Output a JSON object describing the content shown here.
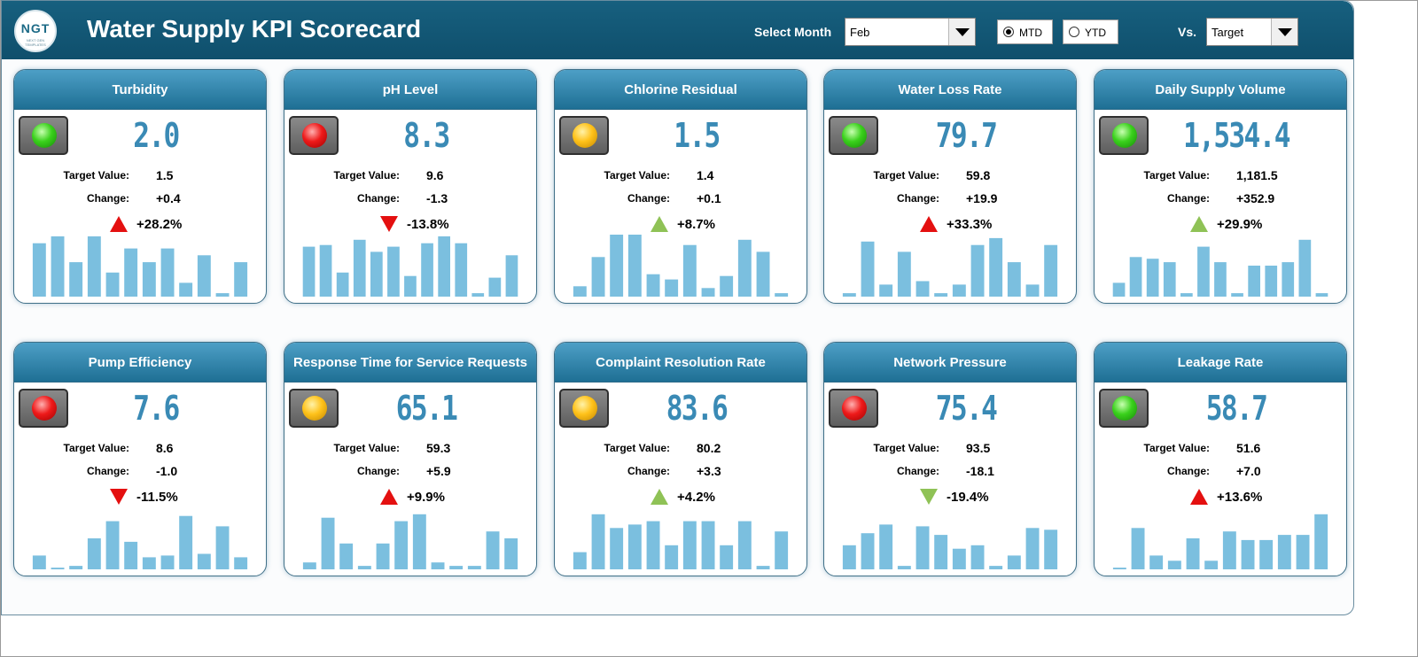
{
  "header": {
    "logo_text": "NGT",
    "logo_subtext": "NEXT GEN TEMPLATES",
    "title": "Water Supply KPI Scorecard",
    "month_label": "Select Month",
    "month_value": "Feb",
    "mtd_label": "MTD",
    "ytd_label": "YTD",
    "selected_period": "MTD",
    "vs_label": "Vs.",
    "vs_value": "Target"
  },
  "labels": {
    "target": "Target Value:",
    "change": "Change:"
  },
  "colors": {
    "header": "#17607f",
    "card_head": "#2a7fa8",
    "value": "#3a8ab5",
    "bars": "#7bbfdf",
    "arrow_bad": "#e41010",
    "arrow_good": "#8fc256"
  },
  "cards": [
    {
      "title": "Turbidity",
      "status": "green",
      "value": "2.0",
      "target": "1.5",
      "change": "+0.4",
      "pct": "+28.2%",
      "direction": "up",
      "arrow_color": "red",
      "bars": [
        62,
        70,
        40,
        70,
        28,
        56,
        40,
        56,
        16,
        48,
        4,
        40
      ]
    },
    {
      "title": "pH Level",
      "status": "red",
      "value": "8.3",
      "target": "9.6",
      "change": "-1.3",
      "pct": "-13.8%",
      "direction": "down",
      "arrow_color": "red",
      "bars": [
        58,
        60,
        28,
        66,
        52,
        58,
        24,
        62,
        70,
        62,
        4,
        22,
        48
      ]
    },
    {
      "title": "Chlorine Residual",
      "status": "amber",
      "value": "1.5",
      "target": "1.4",
      "change": "+0.1",
      "pct": "+8.7%",
      "direction": "up",
      "arrow_color": "green",
      "bars": [
        12,
        46,
        72,
        72,
        26,
        20,
        60,
        10,
        24,
        66,
        52,
        4
      ]
    },
    {
      "title": "Water Loss Rate",
      "status": "green",
      "value": "79.7",
      "target": "59.8",
      "change": "+19.9",
      "pct": "+33.3%",
      "direction": "up",
      "arrow_color": "red",
      "bars": [
        4,
        64,
        14,
        52,
        18,
        4,
        14,
        60,
        68,
        40,
        14,
        60
      ]
    },
    {
      "title": "Daily Supply Volume",
      "status": "green",
      "value": "1,534.4",
      "target": "1,181.5",
      "change": "+352.9",
      "pct": "+29.9%",
      "direction": "up",
      "arrow_color": "green",
      "bars": [
        16,
        46,
        44,
        40,
        4,
        58,
        40,
        4,
        36,
        36,
        40,
        66,
        4
      ]
    },
    {
      "title": "Pump Efficiency",
      "status": "red",
      "value": "7.6",
      "target": "8.6",
      "change": "-1.0",
      "pct": "-11.5%",
      "direction": "down",
      "arrow_color": "red",
      "bars": [
        16,
        2,
        4,
        36,
        56,
        32,
        14,
        16,
        62,
        18,
        50,
        14
      ]
    },
    {
      "title": "Response Time for Service Requests",
      "status": "amber",
      "value": "65.1",
      "target": "59.3",
      "change": "+5.9",
      "pct": "+9.9%",
      "direction": "up",
      "arrow_color": "red",
      "bars": [
        8,
        60,
        30,
        4,
        30,
        56,
        64,
        8,
        4,
        4,
        44,
        36
      ]
    },
    {
      "title": "Complaint Resolution Rate",
      "status": "amber",
      "value": "83.6",
      "target": "80.2",
      "change": "+3.3",
      "pct": "+4.2%",
      "direction": "up",
      "arrow_color": "green",
      "bars": [
        20,
        64,
        48,
        52,
        56,
        28,
        56,
        56,
        28,
        56,
        4,
        44
      ]
    },
    {
      "title": "Network Pressure",
      "status": "red",
      "value": "75.4",
      "target": "93.5",
      "change": "-18.1",
      "pct": "-19.4%",
      "direction": "down",
      "arrow_color": "green",
      "bars": [
        28,
        42,
        52,
        4,
        50,
        40,
        24,
        28,
        4,
        16,
        48,
        46
      ]
    },
    {
      "title": "Leakage Rate",
      "status": "green",
      "value": "58.7",
      "target": "51.6",
      "change": "+7.0",
      "pct": "+13.6%",
      "direction": "up",
      "arrow_color": "red",
      "bars": [
        2,
        48,
        16,
        10,
        36,
        10,
        44,
        34,
        34,
        40,
        40,
        64
      ]
    }
  ]
}
